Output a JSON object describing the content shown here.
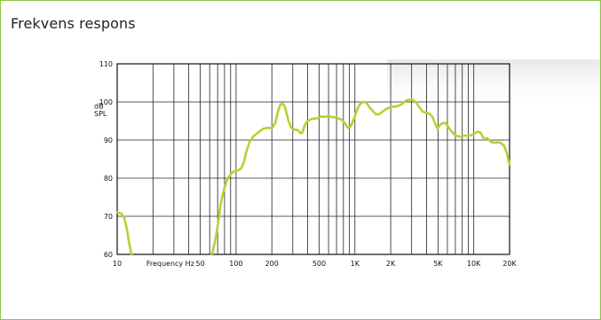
{
  "panel": {
    "title": "Frekvens respons"
  },
  "chart_data": {
    "type": "line",
    "title": "",
    "xlabel": "Frequency Hz",
    "ylabel": "dB SPL",
    "ylabel_lines": [
      "dB",
      "SPL"
    ],
    "xscale": "log",
    "xlim": [
      10,
      20000
    ],
    "ylim": [
      60,
      110
    ],
    "grid": true,
    "line_color": "#b3d334",
    "x_ticks": [
      {
        "value": 10,
        "label": "10"
      },
      {
        "value": 50,
        "label": "50"
      },
      {
        "value": 100,
        "label": "100"
      },
      {
        "value": 200,
        "label": "200"
      },
      {
        "value": 500,
        "label": "500"
      },
      {
        "value": 1000,
        "label": "1K"
      },
      {
        "value": 2000,
        "label": "2K"
      },
      {
        "value": 5000,
        "label": "5K"
      },
      {
        "value": 10000,
        "label": "10K"
      },
      {
        "value": 20000,
        "label": "20K"
      }
    ],
    "y_ticks": [
      {
        "value": 60,
        "label": "60"
      },
      {
        "value": 70,
        "label": "70"
      },
      {
        "value": 80,
        "label": "80"
      },
      {
        "value": 90,
        "label": "90"
      },
      {
        "value": 100,
        "label": "100"
      },
      {
        "value": 110,
        "label": "110"
      }
    ],
    "series": [
      {
        "segments": [
          {
            "x": [
              10,
              10.8,
              11.5,
              12.1,
              12.6,
              13.2
            ],
            "y": [
              71,
              70.8,
              69.5,
              66.5,
              63,
              60
            ]
          },
          {
            "x": [
              62,
              64,
              66,
              68,
              70,
              72,
              74,
              77,
              80,
              84,
              90,
              96,
              103,
              110,
              116,
              122,
              130,
              136,
              140,
              148,
              158,
              170,
              185,
              200,
              214,
              225,
              235,
              245,
              255,
              265,
              275,
              290,
              310,
              330,
              350,
              360,
              380,
              400,
              440,
              480,
              520,
              560,
              600,
              640,
              680,
              720,
              770,
              820,
              870,
              920,
              980,
              1030,
              1090,
              1150,
              1210,
              1270,
              1330,
              1400,
              1500,
              1600,
              1700,
              1800,
              1900,
              2000,
              2150,
              2300,
              2500,
              2700,
              2900,
              3100,
              3300,
              3500,
              3700,
              3900,
              4100,
              4300,
              4500,
              4700,
              4950,
              5200,
              5500,
              5800,
              6100,
              6400,
              6700,
              7000,
              7400,
              7800,
              8300,
              8800,
              9400,
              10000,
              10500,
              11000,
              11500,
              12000,
              12500,
              13000,
              13500,
              14000,
              15000,
              16000,
              17000,
              18000,
              19000,
              19500,
              20000
            ],
            "y": [
              60,
              61,
              63,
              65,
              67.5,
              70,
              73,
              75.5,
              77.5,
              79.5,
              81,
              81.8,
              82,
              82.5,
              84,
              87,
              89.5,
              90.3,
              91,
              91.6,
              92.3,
              93,
              93.2,
              93.1,
              94.5,
              97.5,
              99.2,
              99.6,
              99.1,
              97.3,
              95.2,
              93.3,
              92.8,
              92.6,
              91.8,
              91.9,
              94,
              95,
              95.6,
              95.7,
              96.2,
              96.1,
              96.3,
              96,
              96,
              95.7,
              95.4,
              94.5,
              93.2,
              93.5,
              95.5,
              97.5,
              99.2,
              99.9,
              100,
              99.5,
              98.5,
              97.8,
              96.8,
              96.8,
              97.4,
              98,
              98.4,
              98.7,
              98.8,
              98.9,
              99.5,
              100.4,
              100.6,
              100.5,
              99.7,
              98.5,
              97.5,
              97.2,
              97.1,
              96.8,
              96,
              94.5,
              93,
              94,
              94.5,
              94.4,
              93.5,
              92.5,
              91.8,
              91.2,
              91,
              90.9,
              91.2,
              91.1,
              91.2,
              91.6,
              92,
              92.2,
              91.8,
              90.6,
              90.2,
              90.5,
              90,
              89.5,
              89.3,
              89.4,
              89.2,
              88.5,
              86.5,
              85,
              83.5
            ]
          }
        ]
      }
    ]
  }
}
